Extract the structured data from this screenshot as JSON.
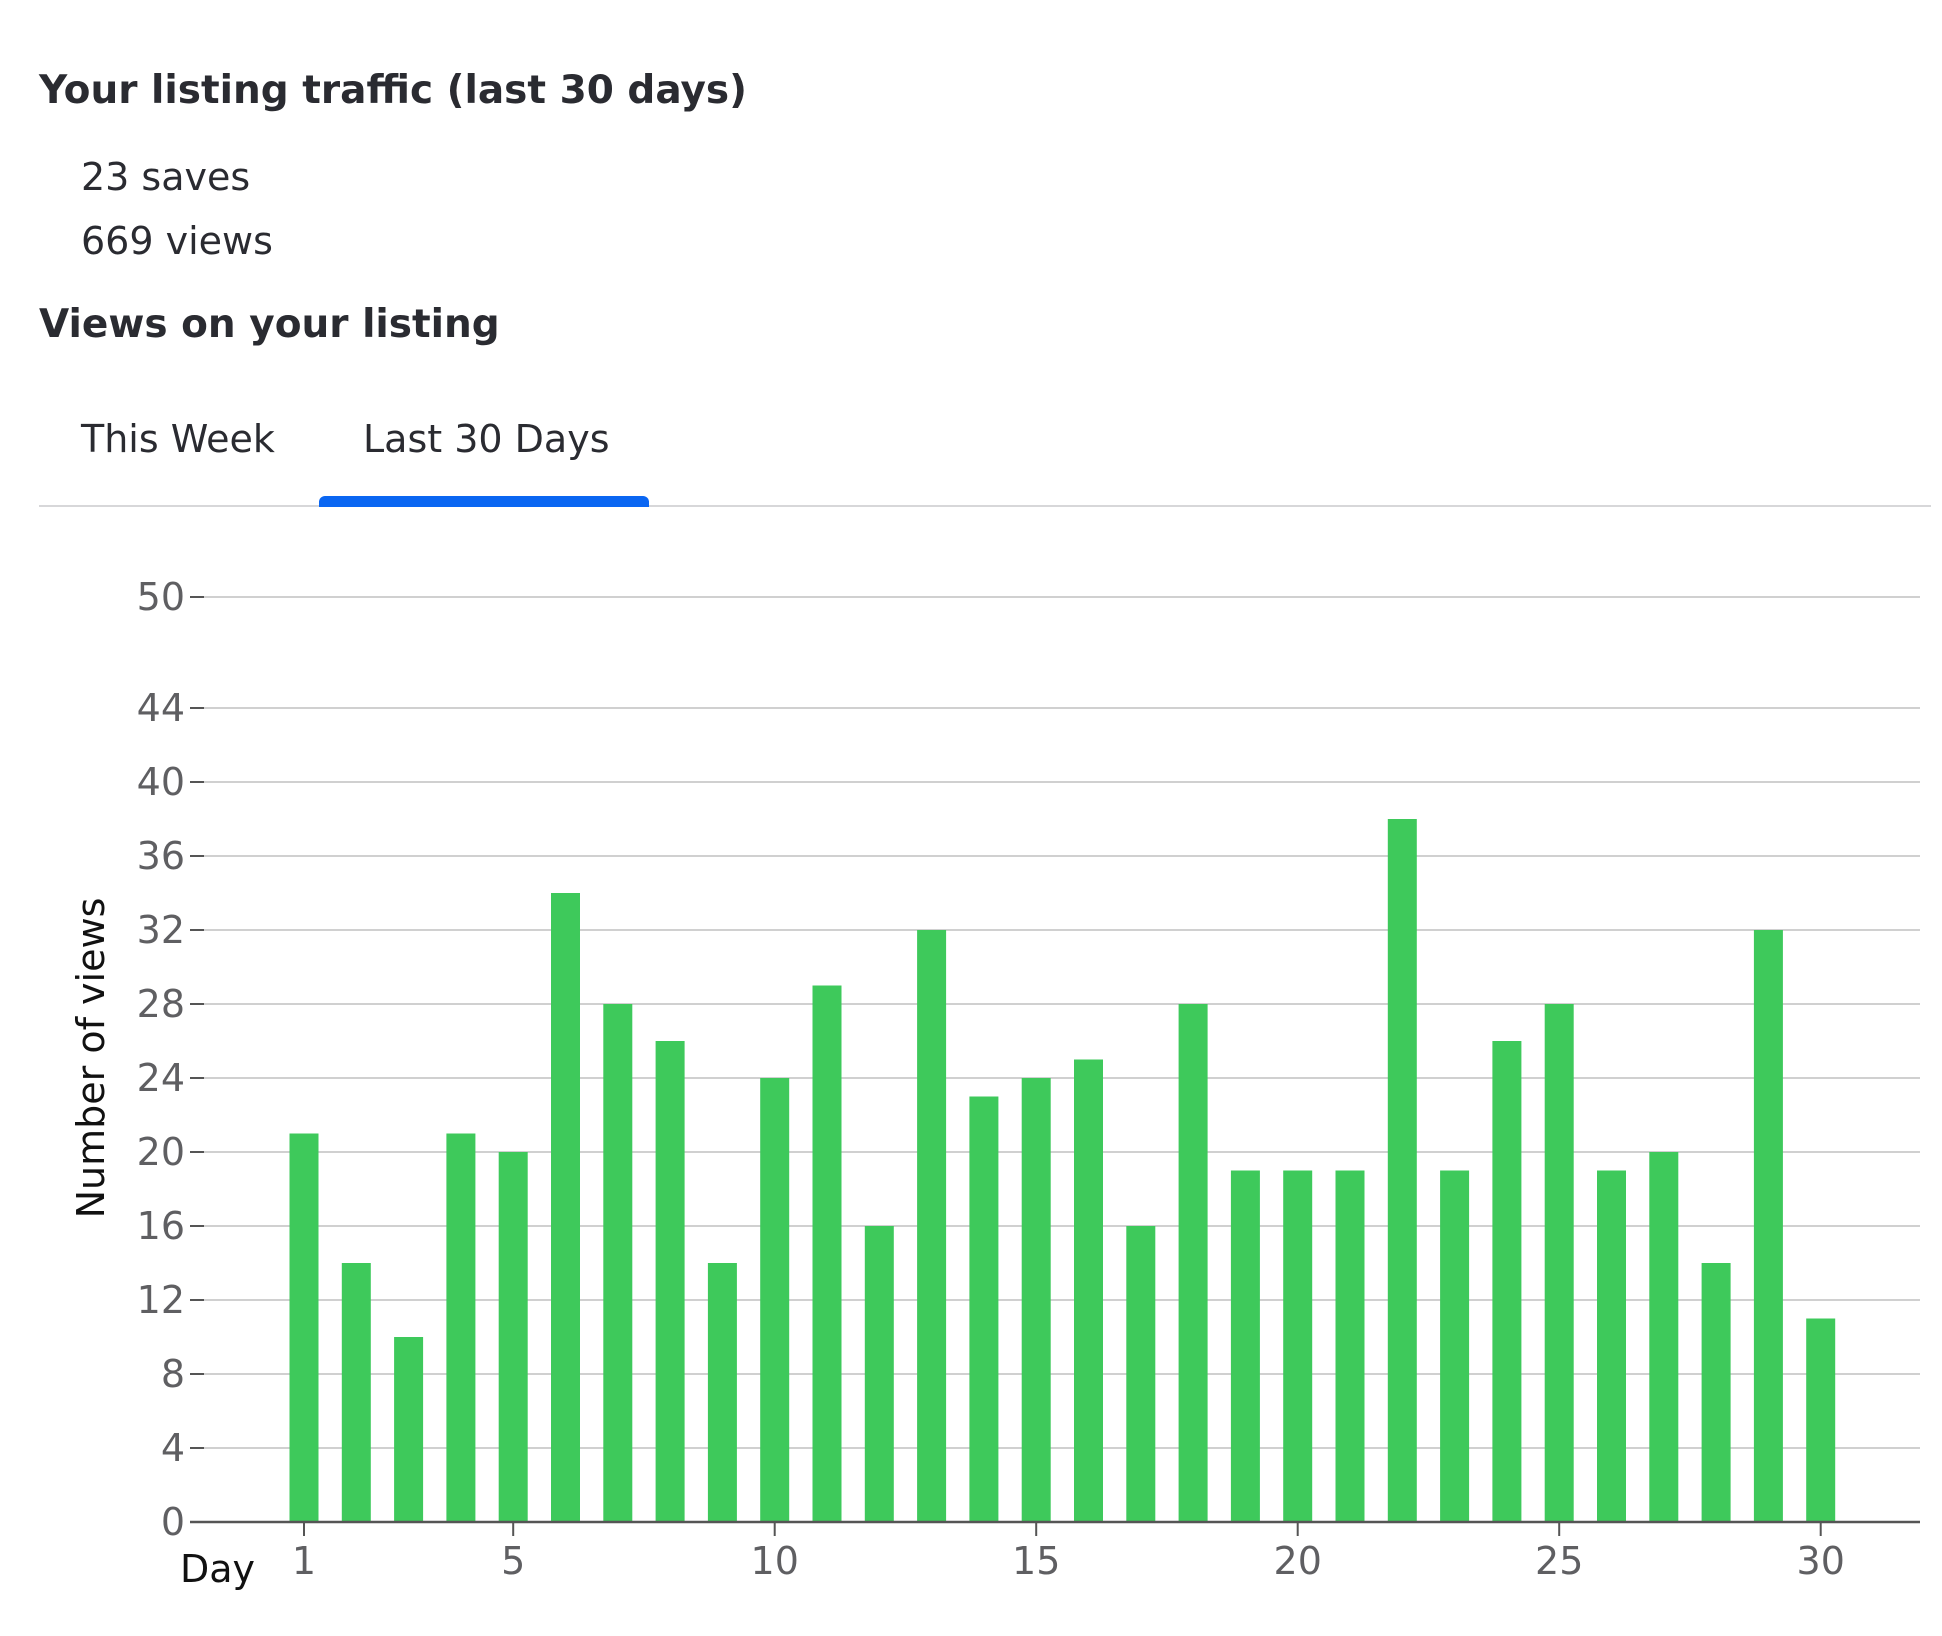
{
  "traffic": {
    "title": "Your listing traffic (last 30 days)",
    "saves": "23 saves",
    "views": "669 views"
  },
  "views_section": {
    "title": "Views on your listing"
  },
  "tabs": [
    {
      "label": "This Week",
      "active": false
    },
    {
      "label": "Last 30 Days",
      "active": true
    }
  ],
  "colors": {
    "accent": "#0a66f2",
    "bar": "#3ec95b",
    "grid": "#d0d0d0",
    "axis": "#555555"
  },
  "chart_data": {
    "type": "bar",
    "title": "",
    "xlabel": "Day",
    "ylabel": "Number of views",
    "x": [
      1,
      2,
      3,
      4,
      5,
      6,
      7,
      8,
      9,
      10,
      11,
      12,
      13,
      14,
      15,
      16,
      17,
      18,
      19,
      20,
      21,
      22,
      23,
      24,
      25,
      26,
      27,
      28,
      29,
      30
    ],
    "values": [
      21,
      14,
      10,
      21,
      20,
      34,
      28,
      26,
      14,
      24,
      29,
      16,
      32,
      23,
      24,
      25,
      16,
      28,
      19,
      19,
      19,
      38,
      19,
      26,
      28,
      19,
      20,
      14,
      32,
      11
    ],
    "xticks": [
      1,
      5,
      10,
      15,
      20,
      25,
      30
    ],
    "yticks": [
      0,
      4,
      8,
      12,
      16,
      20,
      24,
      28,
      32,
      36,
      40,
      44,
      50
    ],
    "ylim": [
      0,
      50
    ],
    "grid": true,
    "legend": "none"
  }
}
